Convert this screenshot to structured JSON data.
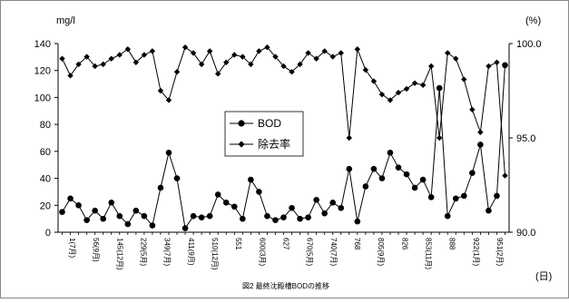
{
  "chart_data": {
    "type": "line",
    "left_unit": "mg/l",
    "right_unit": "(%)",
    "x_unit": "(日)",
    "caption": "図2 最終沈殿槽BODの推移",
    "y_left_ticks": [
      "0",
      "20",
      "40",
      "60",
      "80",
      "100",
      "120",
      "140"
    ],
    "y_left_range": [
      0,
      140
    ],
    "y_right_ticks": [
      "90.0",
      "95.0",
      "100.0"
    ],
    "y_right_range": [
      90,
      100
    ],
    "x_tick_labels": [
      "1(7月)",
      "56(9月)",
      "145(12月)",
      "229(5月)",
      "349(7月)",
      "411(9月)",
      "510(12月)",
      "551",
      "600(3月)",
      "627",
      "670(5月)",
      "740(7月)",
      "768",
      "805(9月)",
      "826",
      "853(11月)",
      "888",
      "922(1月)",
      "951(2月)"
    ],
    "legend": [
      {
        "name": "BOD",
        "marker": "circle"
      },
      {
        "name": "除去率",
        "marker": "diamond"
      }
    ],
    "series": [
      {
        "name": "BOD",
        "axis": "left",
        "values": [
          15,
          25,
          20,
          9,
          16,
          10,
          22,
          12,
          6,
          16,
          12,
          5,
          33,
          59,
          40,
          3,
          12,
          11,
          12,
          28,
          22,
          19,
          10,
          39,
          30,
          12,
          9,
          11,
          18,
          10,
          11,
          24,
          14,
          22,
          18,
          47,
          8,
          34,
          47,
          40,
          59,
          48,
          43,
          33,
          39,
          26,
          107,
          12,
          25,
          27,
          44,
          65,
          16,
          27,
          124
        ]
      },
      {
        "name": "除去率",
        "axis": "right",
        "values": [
          99.2,
          98.3,
          98.9,
          99.3,
          98.8,
          98.9,
          99.2,
          99.4,
          99.7,
          99.0,
          99.4,
          99.6,
          97.5,
          97.0,
          98.5,
          99.8,
          99.5,
          98.9,
          99.6,
          98.4,
          99.0,
          99.4,
          99.3,
          98.9,
          99.6,
          99.8,
          99.3,
          98.8,
          98.5,
          98.9,
          99.5,
          99.2,
          99.6,
          99.3,
          99.5,
          95.0,
          99.7,
          98.6,
          98.0,
          97.3,
          97.0,
          97.4,
          97.6,
          97.9,
          97.8,
          98.8,
          95.0,
          99.5,
          99.2,
          98.1,
          96.5,
          95.3,
          98.8,
          99.0,
          93.0
        ]
      }
    ]
  }
}
